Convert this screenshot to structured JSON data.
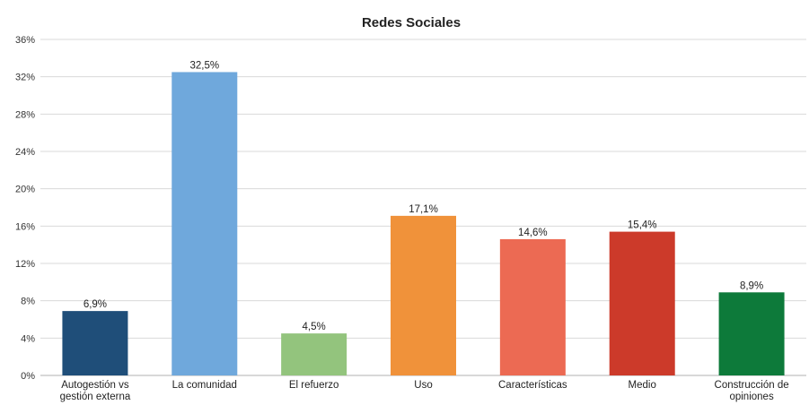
{
  "chart_data": {
    "type": "bar",
    "title": "Redes Sociales",
    "xlabel": "",
    "ylabel": "",
    "ylim": [
      0,
      36
    ],
    "y_ticks": [
      0,
      4,
      8,
      12,
      16,
      20,
      24,
      28,
      32,
      36
    ],
    "y_tick_labels": [
      "0%",
      "4%",
      "8%",
      "12%",
      "16%",
      "20%",
      "24%",
      "28%",
      "32%",
      "36%"
    ],
    "grid": "horizontal",
    "legend": "none",
    "categories": [
      [
        "Autogestión vs",
        "gestión externa"
      ],
      [
        "La comunidad"
      ],
      [
        "El refuerzo"
      ],
      [
        "Uso"
      ],
      [
        "Características"
      ],
      [
        "Medio"
      ],
      [
        "Construcción de",
        "opiniones"
      ]
    ],
    "values": [
      6.9,
      32.5,
      4.5,
      17.1,
      14.6,
      15.4,
      8.9
    ],
    "data_labels": [
      "6,9%",
      "32,5%",
      "4,5%",
      "17,1%",
      "14,6%",
      "15,4%",
      "8,9%"
    ],
    "colors": [
      "#1f4e79",
      "#6fa8dc",
      "#93c47d",
      "#f0923a",
      "#ec6a53",
      "#cc3a2a",
      "#0d7a3a"
    ]
  }
}
